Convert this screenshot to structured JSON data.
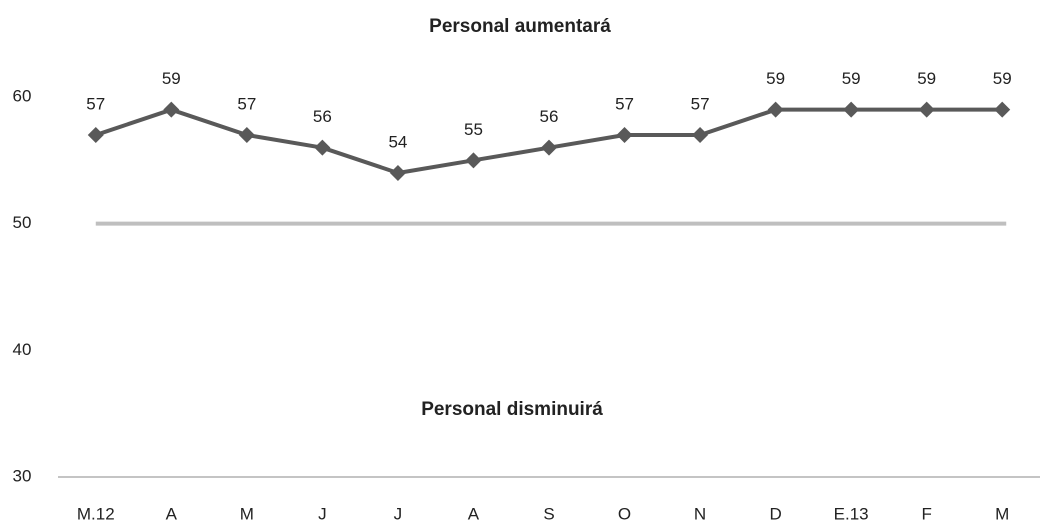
{
  "chart_data": {
    "type": "line",
    "annotations": [
      "Personal aumentará",
      "Personal disminuirá"
    ],
    "categories": [
      "M.12",
      "A",
      "M",
      "J",
      "J",
      "A",
      "S",
      "O",
      "N",
      "D",
      "E.13",
      "F",
      "M"
    ],
    "values": [
      57,
      59,
      57,
      56,
      54,
      55,
      56,
      57,
      57,
      59,
      59,
      59,
      59
    ],
    "color": "#595959",
    "reference": 50,
    "reference_color": "#bfbfbf",
    "ylim": [
      30,
      60
    ],
    "yticks": [
      30,
      40,
      50,
      60
    ],
    "grid": false
  }
}
